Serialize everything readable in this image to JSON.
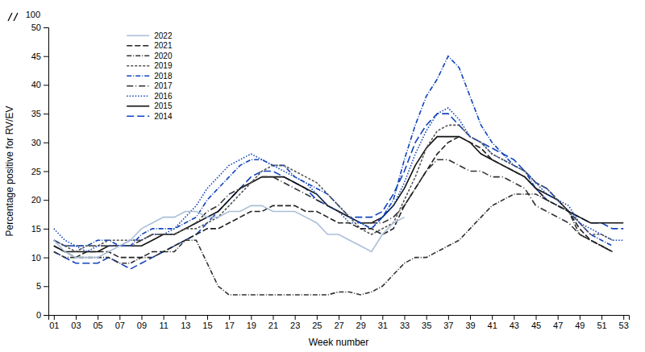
{
  "chart_data": {
    "type": "line",
    "xlabel": "Week number",
    "ylabel": "Percentage positive for RV/EV",
    "annotations": [
      "100"
    ],
    "xlim": [
      0.5,
      53.5
    ],
    "xticks": [
      {
        "value": 1,
        "label": "01"
      },
      {
        "value": 3,
        "label": "03"
      },
      {
        "value": 5,
        "label": "05"
      },
      {
        "value": 7,
        "label": "07"
      },
      {
        "value": 9,
        "label": "09"
      },
      {
        "value": 11,
        "label": "11"
      },
      {
        "value": 13,
        "label": "13"
      },
      {
        "value": 15,
        "label": "15"
      },
      {
        "value": 17,
        "label": "17"
      },
      {
        "value": 19,
        "label": "19"
      },
      {
        "value": 21,
        "label": "21"
      },
      {
        "value": 23,
        "label": "23"
      },
      {
        "value": 25,
        "label": "25"
      },
      {
        "value": 27,
        "label": "27"
      },
      {
        "value": 29,
        "label": "29"
      },
      {
        "value": 31,
        "label": "31"
      },
      {
        "value": 33,
        "label": "33"
      },
      {
        "value": 35,
        "label": "35"
      },
      {
        "value": 37,
        "label": "37"
      },
      {
        "value": 39,
        "label": "39"
      },
      {
        "value": 41,
        "label": "41"
      },
      {
        "value": 43,
        "label": "43"
      },
      {
        "value": 45,
        "label": "45"
      },
      {
        "value": 47,
        "label": "47"
      },
      {
        "value": 49,
        "label": "49"
      },
      {
        "value": 51,
        "label": "51"
      },
      {
        "value": 53,
        "label": "53"
      }
    ],
    "ylim": [
      0,
      50
    ],
    "yticks": [
      0,
      5,
      10,
      15,
      20,
      25,
      30,
      35,
      40,
      45,
      50
    ],
    "grid": false,
    "legend": "upper left",
    "series": [
      {
        "name": "2014",
        "color": "#1144bb",
        "line_style": "long-dashed",
        "x": [
          1,
          2,
          3,
          4,
          5,
          6,
          7,
          8,
          9,
          10,
          11,
          12,
          13,
          14,
          15,
          16,
          17,
          18,
          19,
          20,
          21,
          22,
          23,
          24,
          25,
          26,
          27,
          28,
          29,
          30,
          31,
          32,
          33,
          34,
          35,
          36,
          37,
          38,
          39,
          40,
          41,
          42,
          43,
          44,
          45,
          46,
          47,
          48,
          49,
          50,
          51,
          52,
          53
        ],
        "values": [
          11,
          10,
          9,
          9,
          9,
          10,
          9,
          8,
          9,
          10,
          11,
          12,
          13,
          14,
          16,
          18,
          20,
          22,
          24,
          25,
          25,
          24,
          23,
          22,
          20,
          19,
          18,
          17,
          17,
          17,
          18,
          21,
          25,
          30,
          33,
          35,
          35,
          33,
          31,
          30,
          29,
          28,
          27,
          25,
          23,
          22,
          20,
          18,
          17,
          16,
          16,
          15,
          15
        ]
      },
      {
        "name": "2015",
        "color": "#111111",
        "line_style": "solid",
        "x": [
          1,
          2,
          3,
          4,
          5,
          6,
          7,
          8,
          9,
          10,
          11,
          12,
          13,
          14,
          15,
          16,
          17,
          18,
          19,
          20,
          21,
          22,
          23,
          24,
          25,
          26,
          27,
          28,
          29,
          30,
          31,
          32,
          33,
          34,
          35,
          36,
          37,
          38,
          39,
          40,
          41,
          42,
          43,
          44,
          45,
          46,
          47,
          48,
          49,
          50,
          51,
          52,
          53
        ],
        "values": [
          12,
          11,
          11,
          11,
          11,
          12,
          12,
          12,
          12,
          13,
          14,
          14,
          15,
          16,
          17,
          18,
          20,
          22,
          23,
          24,
          24,
          24,
          23,
          22,
          21,
          19,
          18,
          17,
          16,
          16,
          17,
          19,
          22,
          26,
          29,
          31,
          31,
          31,
          30,
          28,
          27,
          26,
          25,
          24,
          22,
          21,
          20,
          18,
          17,
          16,
          16,
          16,
          16
        ]
      },
      {
        "name": "2016",
        "color": "#1144bb",
        "line_style": "dotted",
        "x": [
          1,
          2,
          3,
          4,
          5,
          6,
          7,
          8,
          9,
          10,
          11,
          12,
          13,
          14,
          15,
          16,
          17,
          18,
          19,
          20,
          21,
          22,
          23,
          24,
          25,
          26,
          27,
          28,
          29,
          30,
          31,
          32,
          33,
          34,
          35,
          36,
          37,
          38,
          39,
          40,
          41,
          42,
          43,
          44,
          45,
          46,
          47,
          48,
          49,
          50,
          51,
          52,
          53
        ],
        "values": [
          15,
          13,
          12,
          11,
          12,
          12,
          12,
          13,
          13,
          14,
          14,
          15,
          17,
          19,
          22,
          24,
          26,
          27,
          28,
          27,
          26,
          25,
          24,
          23,
          21,
          19,
          18,
          16,
          16,
          15,
          17,
          19,
          23,
          28,
          32,
          35,
          36,
          34,
          31,
          30,
          28,
          27,
          26,
          25,
          23,
          21,
          20,
          19,
          16,
          15,
          14,
          13,
          13
        ]
      },
      {
        "name": "2017",
        "color": "#333333",
        "line_style": "long-dash-dot",
        "x": [
          1,
          2,
          3,
          4,
          5,
          6,
          7,
          8,
          9,
          10,
          11,
          12,
          13,
          14,
          15,
          16,
          17,
          18,
          19,
          20,
          21,
          22,
          23,
          24,
          25,
          26,
          27,
          28,
          29,
          30,
          31,
          32,
          33,
          34,
          35,
          36,
          37,
          38,
          39,
          40,
          41,
          42,
          43,
          44,
          45,
          46,
          47,
          48,
          49,
          50,
          51,
          52
        ],
        "values": [
          13,
          12,
          12,
          12,
          12,
          12,
          12,
          12,
          13,
          14,
          14,
          14,
          15,
          16,
          18,
          19,
          21,
          22,
          23,
          24,
          24,
          23,
          22,
          21,
          20,
          19,
          18,
          17,
          16,
          16,
          16,
          17,
          19,
          22,
          25,
          27,
          27,
          26,
          25,
          25,
          24,
          24,
          23,
          22,
          19,
          18,
          17,
          16,
          14,
          13,
          12,
          11
        ]
      },
      {
        "name": "2018",
        "color": "#1144bb",
        "line_style": "dash-dot",
        "x": [
          1,
          2,
          3,
          4,
          5,
          6,
          7,
          8,
          9,
          10,
          11,
          12,
          13,
          14,
          15,
          16,
          17,
          18,
          19,
          20,
          21,
          22,
          23,
          24,
          25,
          26,
          27,
          28,
          29,
          30,
          31,
          32,
          33,
          34,
          35,
          36,
          37,
          38,
          39,
          40,
          41,
          42,
          43,
          44,
          45,
          46,
          47,
          48,
          49,
          50,
          51,
          52
        ],
        "values": [
          13,
          12,
          12,
          12,
          13,
          13,
          12,
          12,
          14,
          15,
          15,
          15,
          16,
          17,
          20,
          22,
          24,
          26,
          27,
          27,
          26,
          26,
          24,
          23,
          22,
          21,
          19,
          17,
          16,
          15,
          17,
          20,
          27,
          33,
          38,
          41,
          45,
          43,
          38,
          33,
          30,
          28,
          26,
          25,
          22,
          20,
          19,
          18,
          16,
          14,
          13,
          12
        ]
      },
      {
        "name": "2019",
        "color": "#555555",
        "line_style": "short-dashed",
        "x": [
          1,
          2,
          3,
          4,
          5,
          6,
          7,
          8,
          9,
          10,
          11,
          12,
          13,
          14,
          15,
          16,
          17,
          18,
          19,
          20,
          21,
          22,
          23,
          24,
          25,
          26,
          27,
          28,
          29,
          30,
          31,
          32,
          33,
          34,
          35,
          36,
          37,
          38,
          39,
          40,
          41,
          42,
          43,
          44,
          45,
          46,
          47,
          48,
          49,
          50,
          51,
          52
        ],
        "values": [
          13,
          12,
          11,
          12,
          12,
          13,
          13,
          13,
          13,
          14,
          14,
          14,
          15,
          15,
          16,
          17,
          19,
          21,
          23,
          25,
          26,
          26,
          25,
          24,
          23,
          21,
          19,
          17,
          15,
          14,
          15,
          16,
          20,
          24,
          29,
          32,
          33,
          33,
          31,
          30,
          28,
          27,
          26,
          25,
          23,
          22,
          20,
          18,
          16,
          14,
          14,
          13
        ]
      },
      {
        "name": "2020",
        "color": "#333333",
        "line_style": "dash-dot",
        "x": [
          1,
          2,
          3,
          4,
          5,
          6,
          7,
          8,
          9,
          10,
          11,
          12,
          13,
          14,
          15,
          16,
          17,
          18,
          19,
          20,
          21,
          22,
          23,
          24,
          25,
          26,
          27,
          28,
          29,
          30,
          31,
          32,
          33,
          34,
          35,
          36,
          37,
          38,
          39,
          40,
          41,
          42,
          43,
          44,
          45,
          46,
          47,
          48,
          49,
          50,
          51,
          52
        ],
        "values": [
          11,
          10,
          10,
          10,
          10,
          10,
          9,
          9,
          10,
          10,
          11,
          11,
          13,
          13,
          9,
          5,
          3.5,
          3.5,
          3.5,
          3.5,
          3.5,
          3.5,
          3.5,
          3.5,
          3.5,
          3.5,
          4,
          4,
          3.5,
          4,
          5,
          7,
          9,
          10,
          10,
          11,
          12,
          13,
          15,
          17,
          19,
          20,
          21,
          21,
          21,
          20,
          19,
          18,
          14,
          13,
          12,
          11
        ]
      },
      {
        "name": "2021",
        "color": "#222222",
        "line_style": "dashed",
        "x": [
          1,
          2,
          3,
          4,
          5,
          6,
          7,
          8,
          9,
          10,
          11,
          12,
          13,
          14,
          15,
          16,
          17,
          18,
          19,
          20,
          21,
          22,
          23,
          24,
          25,
          26,
          27,
          28,
          29,
          30,
          31,
          32,
          33,
          34,
          35,
          36,
          37,
          38,
          39,
          40,
          41,
          42,
          43,
          44,
          45,
          46,
          47,
          48,
          49,
          50,
          51,
          52
        ],
        "values": [
          12,
          11,
          10,
          11,
          11,
          11,
          10,
          10,
          10,
          11,
          11,
          12,
          13,
          14,
          15,
          15,
          16,
          17,
          18,
          18,
          19,
          19,
          19,
          18,
          18,
          17,
          16,
          16,
          15,
          15,
          14,
          15,
          19,
          22,
          25,
          28,
          30,
          31,
          30,
          29,
          27,
          26,
          25,
          24,
          22,
          20,
          19,
          18,
          15,
          13,
          12,
          11
        ]
      },
      {
        "name": "2022",
        "color": "#aabfd8",
        "line_style": "solid",
        "x": [
          1,
          2,
          3,
          4,
          5,
          6,
          7,
          8,
          9,
          10,
          11,
          12,
          13,
          14,
          15,
          16,
          17,
          18,
          19,
          20,
          21,
          22,
          23,
          24,
          25,
          26,
          27,
          28,
          29,
          30,
          31,
          32,
          33
        ],
        "values": [
          13,
          11,
          10,
          10,
          10,
          11,
          12,
          13,
          15,
          16,
          17,
          17,
          18,
          18,
          17,
          17,
          18,
          18,
          19,
          19,
          18,
          18,
          18,
          17,
          16,
          14,
          14,
          13,
          12,
          11,
          14,
          16,
          17
        ]
      }
    ]
  }
}
